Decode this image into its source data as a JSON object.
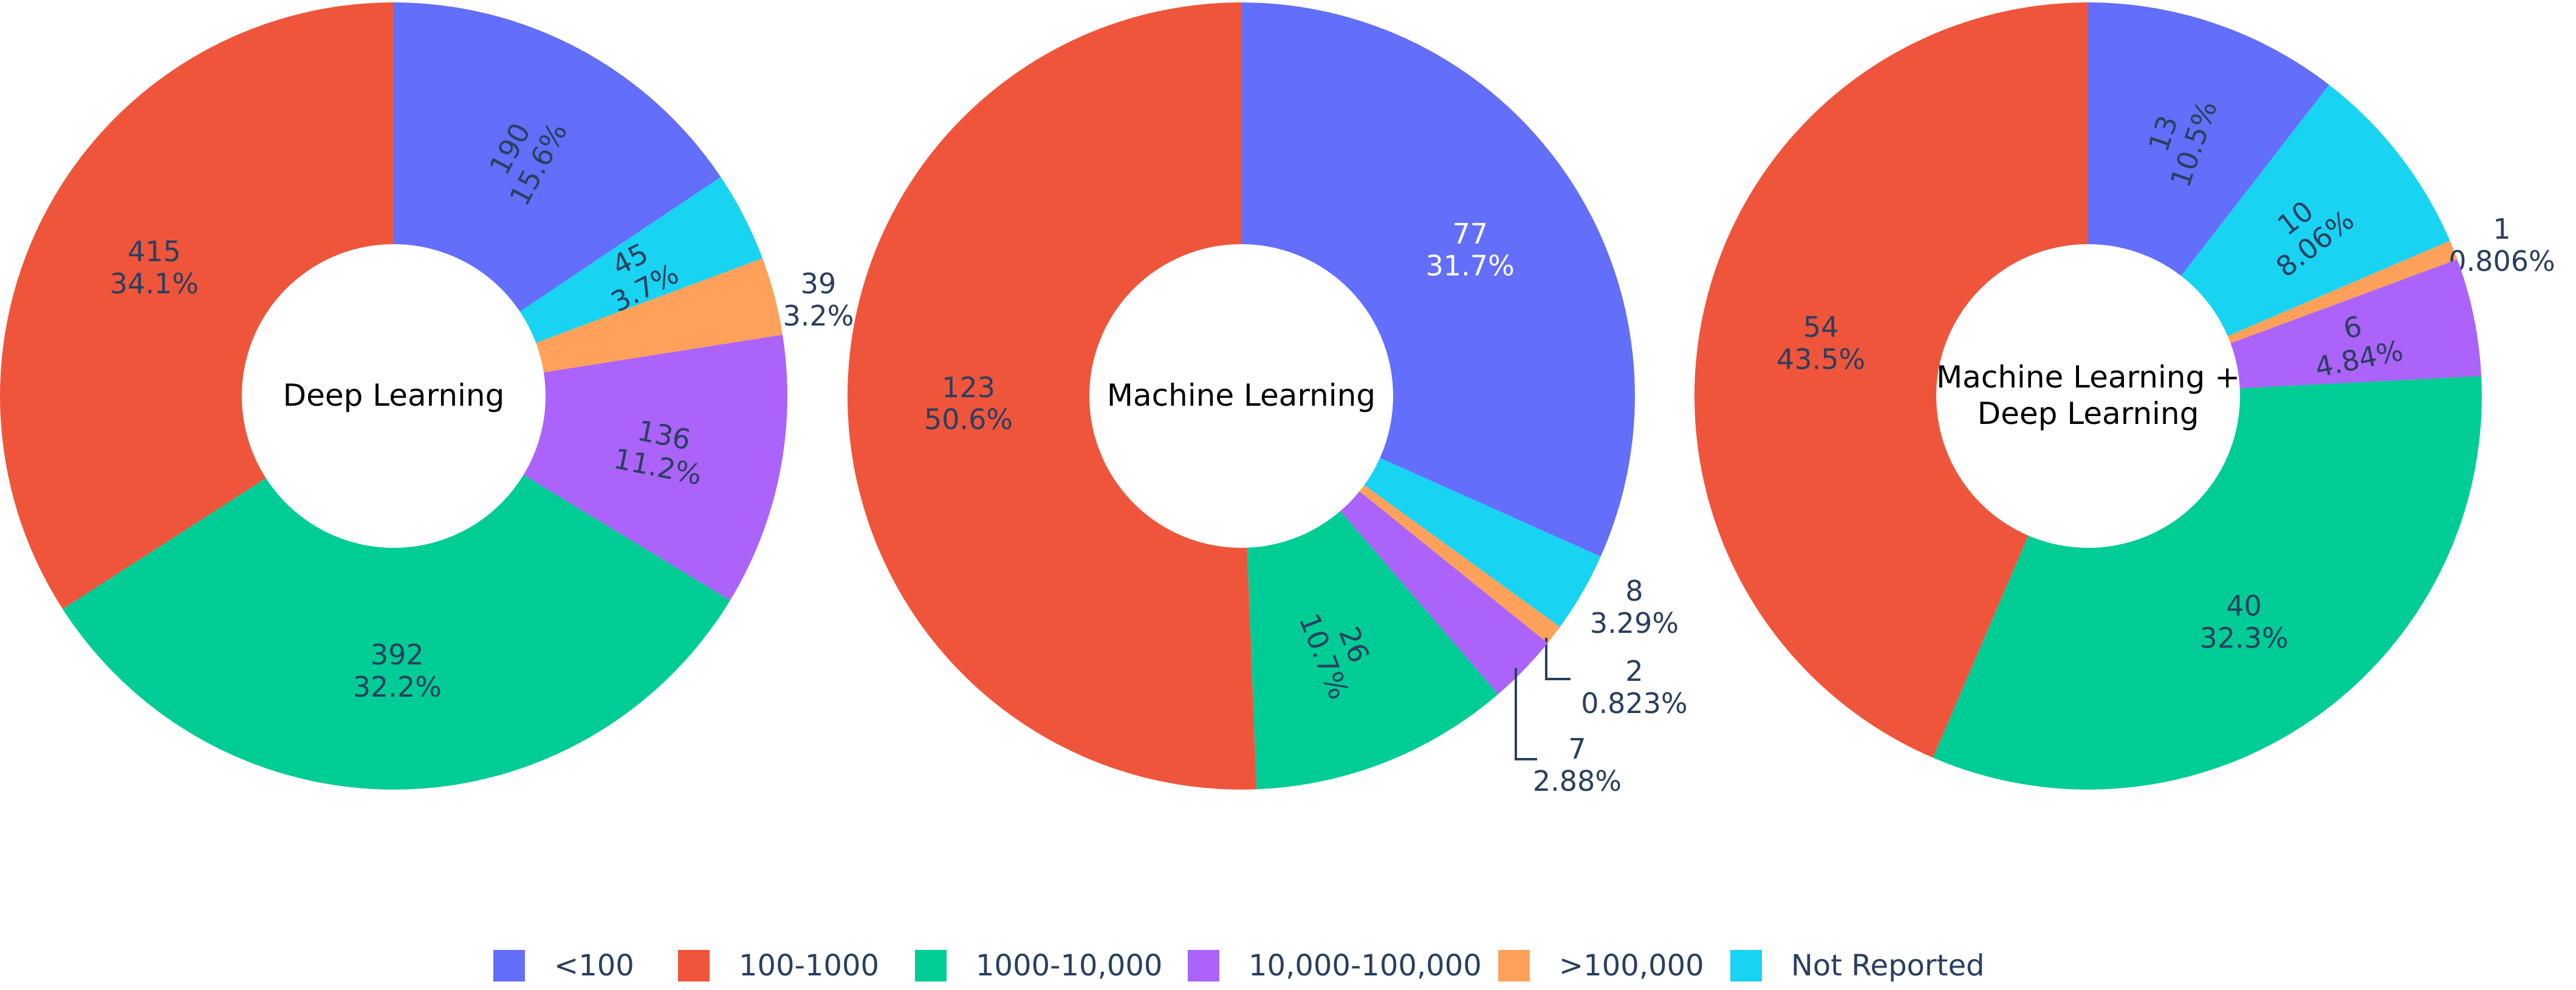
{
  "chart_data": [
    {
      "type": "pie",
      "hole": true,
      "title": "Deep Learning",
      "categories": [
        "<100",
        "100-1000",
        "1000-10,000",
        "10,000-100,000",
        ">100,000",
        "Not Reported"
      ],
      "values": [
        190,
        415,
        392,
        136,
        39,
        45
      ],
      "percent_labels": [
        "15.6%",
        "34.1%",
        "32.2%",
        "11.2%",
        "3.2%",
        "3.7%"
      ]
    },
    {
      "type": "pie",
      "hole": true,
      "title": "Machine Learning",
      "categories": [
        "<100",
        "100-1000",
        "1000-10,000",
        "10,000-100,000",
        ">100,000",
        "Not Reported"
      ],
      "values": [
        77,
        123,
        26,
        7,
        2,
        8
      ],
      "percent_labels": [
        "31.7%",
        "50.6%",
        "10.7%",
        "2.88%",
        "0.823%",
        "3.29%"
      ]
    },
    {
      "type": "pie",
      "hole": true,
      "title": [
        "Machine Learning +",
        "Deep Learning"
      ],
      "categories": [
        "<100",
        "100-1000",
        "1000-10,000",
        "10,000-100,000",
        ">100,000",
        "Not Reported"
      ],
      "values": [
        13,
        54,
        40,
        6,
        1,
        10
      ],
      "percent_labels": [
        "10.5%",
        "43.5%",
        "32.3%",
        "4.84%",
        "0.806%",
        "8.06%"
      ]
    }
  ],
  "legend": {
    "position": "bottom-center",
    "items": [
      {
        "label": "<100",
        "color": "#636efa"
      },
      {
        "label": "100-1000",
        "color": "#ef553b"
      },
      {
        "label": "1000-10,000",
        "color": "#00cc96"
      },
      {
        "label": "10,000-100,000",
        "color": "#ab63fa"
      },
      {
        "label": ">100,000",
        "color": "#ffa15a"
      },
      {
        "label": "Not Reported",
        "color": "#19d3f3"
      }
    ]
  },
  "draw_order": [
    0,
    5,
    4,
    3,
    2,
    1
  ]
}
